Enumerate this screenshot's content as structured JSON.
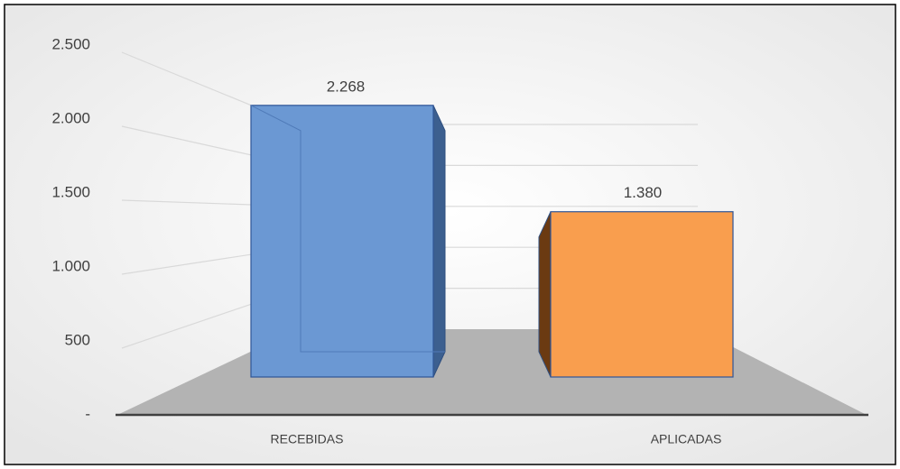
{
  "chart_data": {
    "type": "bar3d",
    "categories": [
      "RECEBIDAS",
      "APLICADAS"
    ],
    "series": [
      {
        "name": "RECEBIDAS",
        "color": "#6b98d3",
        "values": [
          2268,
          null
        ]
      },
      {
        "name": "APLICADAS",
        "color": "#f99e4e",
        "values": [
          null,
          1380
        ]
      }
    ],
    "value_labels": [
      "2.268",
      "1.380"
    ],
    "ylim": [
      0,
      2500
    ],
    "yticks": [
      {
        "value": 0,
        "label": "-"
      },
      500,
      {
        "value": 1000,
        "label": "1.000"
      },
      {
        "value": 1500,
        "label": "1.500"
      },
      {
        "value": 2000,
        "label": "2.000"
      },
      {
        "value": 2500,
        "label": "2.500"
      }
    ],
    "grid": true
  }
}
